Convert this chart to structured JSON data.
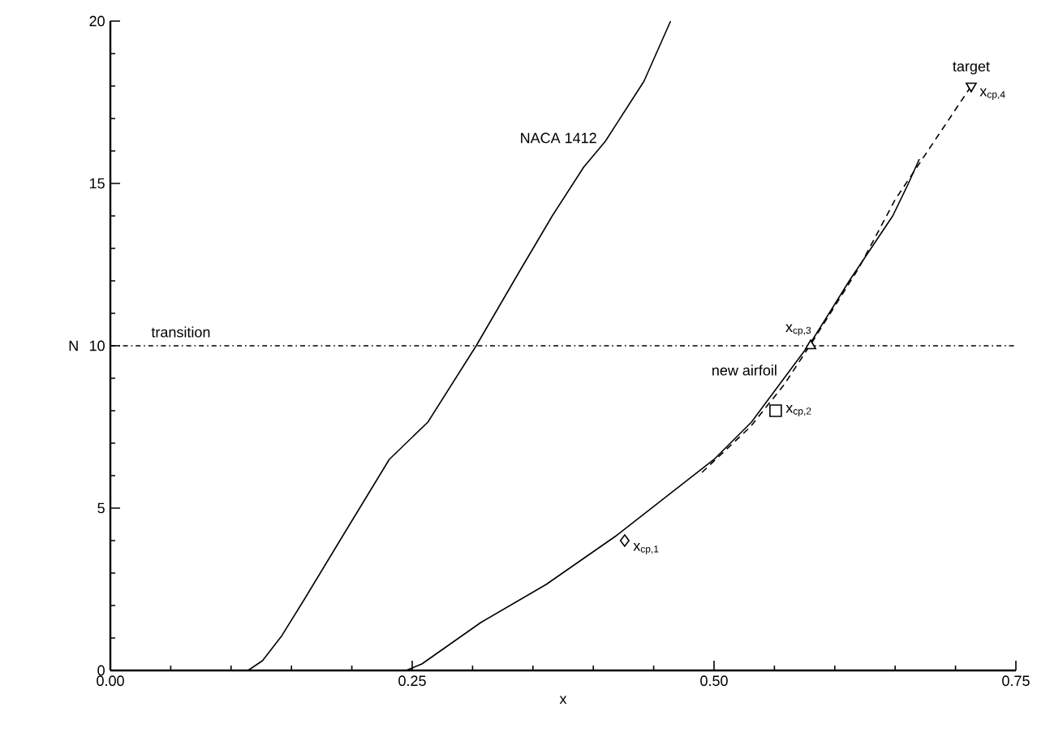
{
  "chart_data": {
    "type": "line",
    "xlabel": "x",
    "ylabel": "N",
    "xlim": [
      0,
      0.75
    ],
    "ylim": [
      0,
      20
    ],
    "xticks": [
      {
        "value": 0,
        "label": "0.00"
      },
      {
        "value": 0.05,
        "label": null
      },
      {
        "value": 0.1,
        "label": null
      },
      {
        "value": 0.15,
        "label": null
      },
      {
        "value": 0.2,
        "label": null
      },
      {
        "value": 0.25,
        "label": "0.25"
      },
      {
        "value": 0.3,
        "label": null
      },
      {
        "value": 0.35,
        "label": null
      },
      {
        "value": 0.4,
        "label": null
      },
      {
        "value": 0.45,
        "label": null
      },
      {
        "value": 0.5,
        "label": "0.50"
      },
      {
        "value": 0.55,
        "label": null
      },
      {
        "value": 0.6,
        "label": null
      },
      {
        "value": 0.65,
        "label": null
      },
      {
        "value": 0.7,
        "label": null
      },
      {
        "value": 0.75,
        "label": "0.75"
      }
    ],
    "yticks": [
      0,
      {
        "value": 1,
        "label": null
      },
      {
        "value": 2,
        "label": null
      },
      {
        "value": 3,
        "label": null
      },
      {
        "value": 4,
        "label": null
      },
      5,
      {
        "value": 6,
        "label": null
      },
      {
        "value": 7,
        "label": null
      },
      {
        "value": 8,
        "label": null
      },
      {
        "value": 9,
        "label": null
      },
      10,
      {
        "value": 11,
        "label": null
      },
      {
        "value": 12,
        "label": null
      },
      {
        "value": 13,
        "label": null
      },
      {
        "value": 14,
        "label": null
      },
      15,
      {
        "value": 16,
        "label": null
      },
      {
        "value": 17,
        "label": null
      },
      {
        "value": 18,
        "label": null
      },
      {
        "value": 19,
        "label": null
      },
      20
    ],
    "series": [
      {
        "name": "NACA 1412",
        "color": "#000000",
        "line_style": "solid",
        "x": [
          0.114,
          0.126,
          0.142,
          0.16,
          0.195,
          0.231,
          0.263,
          0.303,
          0.339,
          0.366,
          0.392,
          0.41,
          0.442,
          0.464
        ],
        "values": [
          0,
          0.3,
          1.07,
          2.15,
          4.3,
          6.5,
          7.65,
          10,
          12.3,
          14,
          15.5,
          16.3,
          18.15,
          20
        ]
      },
      {
        "name": "new airfoil",
        "color": "#000000",
        "line_style": "solid",
        "x": [
          0.245,
          0.258,
          0.307,
          0.361,
          0.419,
          0.5,
          0.531,
          0.558,
          0.581,
          0.612,
          0.648,
          0.661,
          0.67
        ],
        "values": [
          0,
          0.2,
          1.48,
          2.65,
          4.15,
          6.5,
          7.65,
          9,
          10.15,
          12,
          14,
          15,
          15.75
        ]
      },
      {
        "color": "#000000",
        "line_style": "dashed",
        "x": [
          0.49,
          0.53,
          0.558,
          0.581,
          0.62,
          0.65,
          0.713
        ],
        "values": [
          6.1,
          7.5,
          8.8,
          10.1,
          12.4,
          14.5,
          18
        ]
      },
      {
        "name": "x$_{cp,1}$",
        "type": "scatter",
        "marker": "diamond",
        "color": "#000000",
        "x": [
          0.426
        ],
        "values": [
          4
        ]
      },
      {
        "name": "x$_{cp,2}$",
        "type": "scatter",
        "marker": "square",
        "color": "#000000",
        "x": [
          0.551
        ],
        "values": [
          8
        ]
      },
      {
        "name": "x$_{cp,3}$",
        "type": "scatter",
        "marker": "triangle",
        "color": "#000000",
        "x": [
          0.58
        ],
        "values": [
          10
        ]
      },
      {
        "name": "x$_{cp,4}$",
        "type": "scatter",
        "marker": "triangle_down",
        "color": "#000000",
        "x": [
          0.713
        ],
        "values": [
          18
        ]
      }
    ],
    "ref_lines": [
      {
        "axis": "y",
        "value": 10,
        "label": "transition",
        "color": "#000000",
        "line_style": "dashdot"
      }
    ],
    "annotations": [
      {
        "text": "target",
        "x": 0.713,
        "y": 18
      }
    ]
  }
}
